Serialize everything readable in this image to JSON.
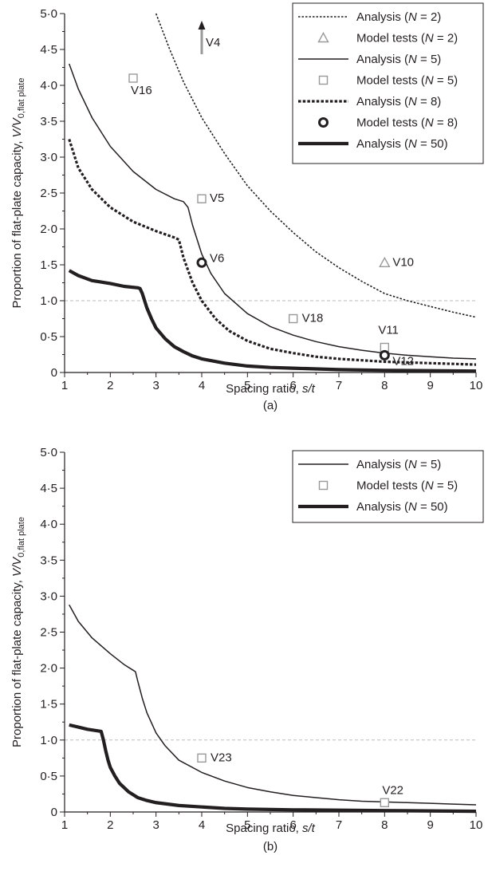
{
  "chart_data": [
    {
      "panel_label": "(a)",
      "type": "line",
      "xlabel": "Spacing ratio, s/t",
      "ylabel": "Proportion of flat-plate capacity, V/V0,flat plate",
      "xlim": [
        1,
        10
      ],
      "ylim": [
        0,
        5
      ],
      "x_ticks": [
        1,
        2,
        3,
        4,
        5,
        6,
        7,
        8,
        9,
        10
      ],
      "y_tick_labels": [
        "0",
        "0·5",
        "1·0",
        "1·5",
        "2·0",
        "2·5",
        "3·0",
        "3·5",
        "4·0",
        "4·5",
        "5·0"
      ],
      "reference_line": {
        "y": 1.0,
        "style": "dashed",
        "color": "#bbbbbb"
      },
      "legend_position": "top-right",
      "series": [
        {
          "name": "Analysis (N = 2)",
          "kind": "line",
          "style": "dotted-thin",
          "color": "#231f20",
          "x": [
            3.0,
            3.3,
            3.6,
            4.0,
            4.5,
            5.0,
            5.5,
            6.0,
            6.5,
            7.0,
            7.5,
            8.0,
            8.5,
            9.0,
            9.5,
            10.0
          ],
          "y": [
            5.0,
            4.5,
            4.05,
            3.55,
            3.05,
            2.6,
            2.25,
            1.95,
            1.68,
            1.46,
            1.27,
            1.1,
            1.0,
            0.92,
            0.84,
            0.77
          ]
        },
        {
          "name": "Model tests (N = 2)",
          "kind": "points",
          "marker": "triangle",
          "color": "#999999",
          "x": [
            8.0
          ],
          "y": [
            1.53
          ],
          "labels": [
            "V10"
          ]
        },
        {
          "name": "Analysis (N = 5)",
          "kind": "line",
          "style": "solid-thin",
          "color": "#231f20",
          "x": [
            1.1,
            1.3,
            1.6,
            2.0,
            2.5,
            3.0,
            3.4,
            3.6,
            3.7,
            3.8,
            4.0,
            4.2,
            4.5,
            5.0,
            5.5,
            6.0,
            6.5,
            7.0,
            7.5,
            8.0,
            8.5,
            9.0,
            9.5,
            10.0
          ],
          "y": [
            4.3,
            3.95,
            3.55,
            3.15,
            2.8,
            2.55,
            2.42,
            2.38,
            2.3,
            2.05,
            1.65,
            1.38,
            1.1,
            0.82,
            0.64,
            0.52,
            0.43,
            0.36,
            0.31,
            0.27,
            0.24,
            0.22,
            0.2,
            0.19
          ]
        },
        {
          "name": "Model tests (N = 5)",
          "kind": "points",
          "marker": "square",
          "color": "#999999",
          "x": [
            2.5,
            4.0,
            6.0,
            8.0
          ],
          "y": [
            4.1,
            2.42,
            0.75,
            0.35
          ],
          "labels": [
            "V16",
            "V5",
            "V18",
            "V11"
          ]
        },
        {
          "name": "Analysis (N = 8)",
          "kind": "line",
          "style": "dotted-thick",
          "color": "#231f20",
          "x": [
            1.1,
            1.3,
            1.6,
            2.0,
            2.5,
            3.0,
            3.4,
            3.5,
            3.6,
            3.8,
            4.0,
            4.3,
            4.6,
            5.0,
            5.5,
            6.0,
            6.5,
            7.0,
            7.5,
            8.0,
            8.5,
            9.0,
            9.5,
            10.0
          ],
          "y": [
            3.25,
            2.85,
            2.55,
            2.3,
            2.1,
            1.97,
            1.88,
            1.85,
            1.6,
            1.25,
            1.0,
            0.75,
            0.58,
            0.44,
            0.33,
            0.27,
            0.22,
            0.19,
            0.17,
            0.15,
            0.14,
            0.13,
            0.12,
            0.11
          ]
        },
        {
          "name": "Model tests (N = 8)",
          "kind": "points",
          "marker": "circle",
          "color": "#231f20",
          "x": [
            4.0,
            8.0
          ],
          "y": [
            1.53,
            0.24
          ],
          "labels": [
            "V6",
            "V12"
          ]
        },
        {
          "name": "Analysis (N = 50)",
          "kind": "line",
          "style": "solid-thick",
          "color": "#231f20",
          "x": [
            1.1,
            1.3,
            1.6,
            2.0,
            2.3,
            2.6,
            2.65,
            2.7,
            2.8,
            2.9,
            3.0,
            3.2,
            3.4,
            3.6,
            3.8,
            4.0,
            4.5,
            5.0,
            5.5,
            6.0,
            7.0,
            8.0,
            9.0,
            10.0
          ],
          "y": [
            1.42,
            1.35,
            1.28,
            1.24,
            1.2,
            1.18,
            1.17,
            1.1,
            0.9,
            0.75,
            0.62,
            0.47,
            0.36,
            0.29,
            0.23,
            0.19,
            0.13,
            0.09,
            0.07,
            0.06,
            0.04,
            0.03,
            0.025,
            0.02
          ]
        }
      ],
      "annotations": [
        {
          "text": "V4",
          "x": 4.0,
          "y": 4.7,
          "arrow": "up",
          "arrow_color": "#999999"
        }
      ]
    },
    {
      "panel_label": "(b)",
      "type": "line",
      "xlabel": "Spacing ratio, s/t",
      "ylabel": "Proportion of flat-plate capacity, V/V0,flat plate",
      "xlim": [
        1,
        10
      ],
      "ylim": [
        0,
        5
      ],
      "x_ticks": [
        1,
        2,
        3,
        4,
        5,
        6,
        7,
        8,
        9,
        10
      ],
      "y_tick_labels": [
        "0",
        "0·5",
        "1·0",
        "1·5",
        "2·0",
        "2·5",
        "3·0",
        "3·5",
        "4·0",
        "4·5",
        "5·0"
      ],
      "reference_line": {
        "y": 1.0,
        "style": "dashed",
        "color": "#bbbbbb"
      },
      "legend_position": "top-right",
      "series": [
        {
          "name": "Analysis (N = 5)",
          "kind": "line",
          "style": "solid-thin",
          "color": "#231f20",
          "x": [
            1.1,
            1.3,
            1.6,
            2.0,
            2.3,
            2.5,
            2.55,
            2.6,
            2.7,
            2.8,
            3.0,
            3.2,
            3.5,
            4.0,
            4.5,
            5.0,
            5.5,
            6.0,
            6.5,
            7.0,
            7.5,
            8.0,
            8.5,
            9.0,
            9.5,
            10.0
          ],
          "y": [
            2.88,
            2.65,
            2.42,
            2.2,
            2.05,
            1.97,
            1.95,
            1.82,
            1.58,
            1.38,
            1.1,
            0.92,
            0.72,
            0.55,
            0.43,
            0.34,
            0.28,
            0.23,
            0.2,
            0.17,
            0.15,
            0.14,
            0.13,
            0.12,
            0.11,
            0.1
          ]
        },
        {
          "name": "Model tests (N = 5)",
          "kind": "points",
          "marker": "square",
          "color": "#999999",
          "x": [
            4.0,
            8.0
          ],
          "y": [
            0.75,
            0.13
          ],
          "labels": [
            "V23",
            "V22"
          ]
        },
        {
          "name": "Analysis (N = 50)",
          "kind": "line",
          "style": "solid-thick",
          "color": "#231f20",
          "x": [
            1.1,
            1.3,
            1.5,
            1.7,
            1.8,
            1.85,
            1.9,
            1.95,
            2.0,
            2.1,
            2.2,
            2.4,
            2.6,
            2.8,
            3.0,
            3.5,
            4.0,
            4.5,
            5.0,
            6.0,
            7.0,
            8.0,
            9.0,
            10.0
          ],
          "y": [
            1.21,
            1.18,
            1.15,
            1.13,
            1.12,
            1.0,
            0.85,
            0.72,
            0.62,
            0.5,
            0.4,
            0.28,
            0.2,
            0.16,
            0.13,
            0.09,
            0.07,
            0.05,
            0.04,
            0.03,
            0.025,
            0.02,
            0.015,
            0.01
          ]
        }
      ],
      "annotations": []
    }
  ]
}
